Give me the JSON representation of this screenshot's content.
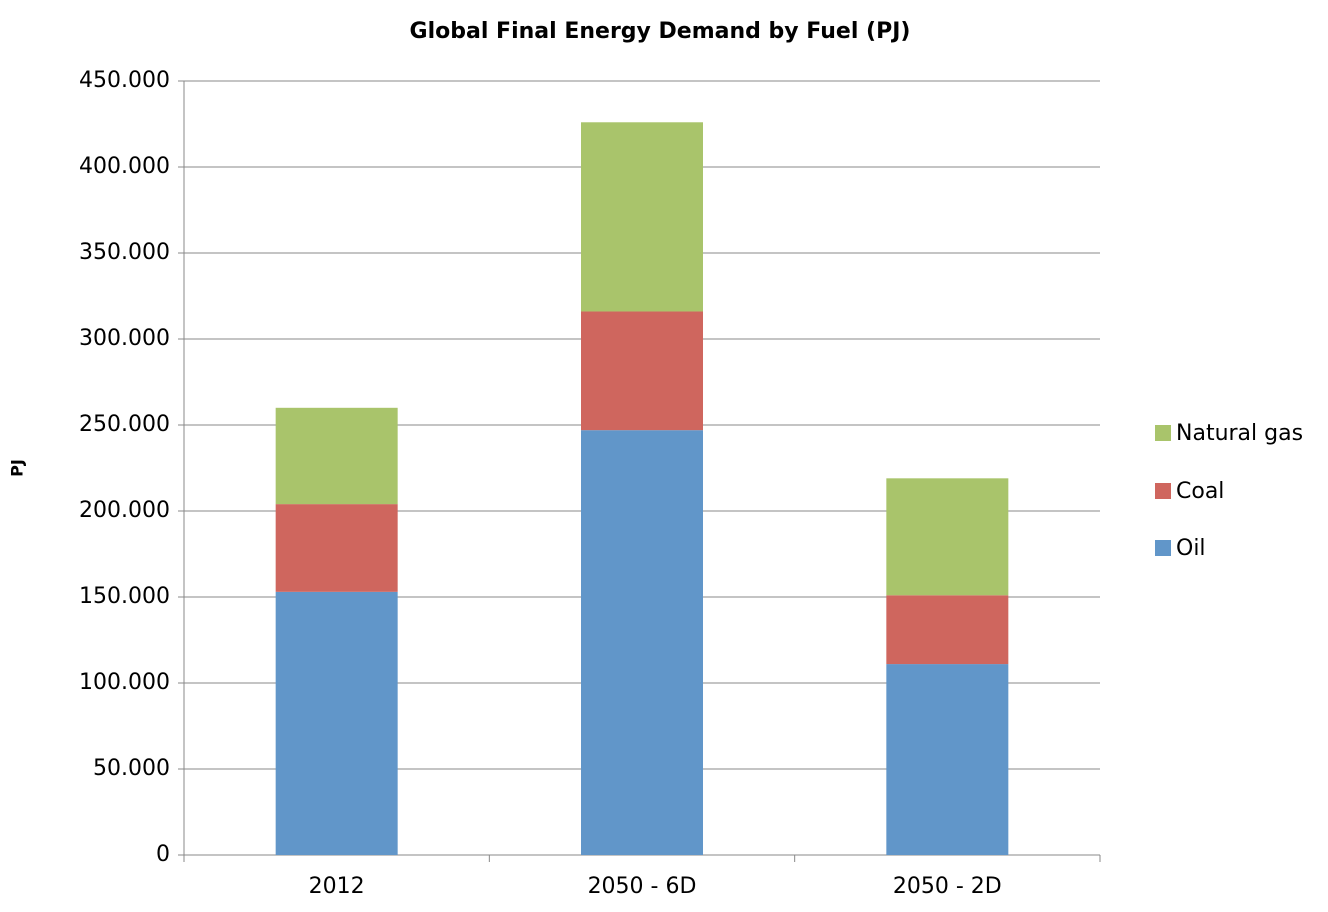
{
  "chart_data": {
    "type": "stacked_bar",
    "title": "Global Final Energy Demand by Fuel (PJ)",
    "y_label": "PJ",
    "categories": [
      "2012",
      "2050 - 6D",
      "2050 - 2D"
    ],
    "series": [
      {
        "name": "Oil",
        "color": "#6196c9",
        "values": [
          153000,
          247000,
          111000
        ]
      },
      {
        "name": "Coal",
        "color": "#cf665e",
        "values": [
          51000,
          69000,
          40000
        ]
      },
      {
        "name": "Natural gas",
        "color": "#a9c46b",
        "values": [
          56000,
          110000,
          68000
        ]
      }
    ],
    "ylim": [
      0,
      450000
    ],
    "yticks": [
      0,
      {
        "value": 50000,
        "label": "50.000"
      },
      {
        "value": 100000,
        "label": "100.000"
      },
      {
        "value": 150000,
        "label": "150.000"
      },
      {
        "value": 200000,
        "label": "200.000"
      },
      {
        "value": 250000,
        "label": "250.000"
      },
      {
        "value": 300000,
        "label": "300.000"
      },
      {
        "value": 350000,
        "label": "350.000"
      },
      {
        "value": 400000,
        "label": "400.000"
      },
      {
        "value": 450000,
        "label": "450.000"
      }
    ],
    "grid": true,
    "legend": "right"
  }
}
